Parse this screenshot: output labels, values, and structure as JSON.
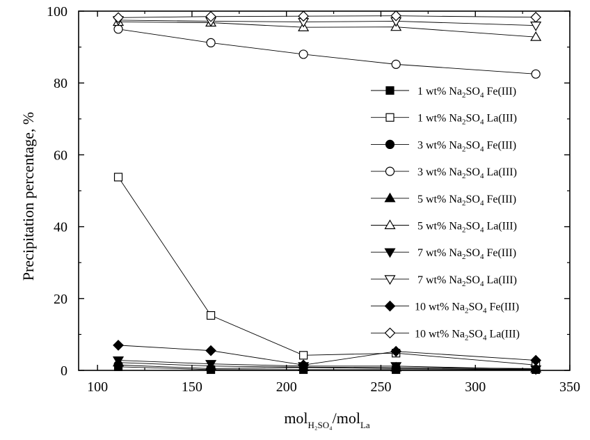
{
  "chart_data": {
    "type": "line",
    "title": "",
    "xlabel": {
      "main": "mol",
      "sub1": "H₂SO₄",
      "sep": "/mol",
      "sub2": "La"
    },
    "ylabel": "Precipitation percentage, %",
    "xlim": [
      90,
      350
    ],
    "ylim": [
      0,
      100
    ],
    "xticks": [
      "100",
      "150",
      "200",
      "250",
      "300",
      "350"
    ],
    "yticks": [
      "0",
      "20",
      "40",
      "60",
      "80",
      "100"
    ],
    "x": [
      111,
      160,
      209,
      258,
      332
    ],
    "series": [
      {
        "conc": "1 wt% Na",
        "metal": "Fe(III)",
        "marker": "square",
        "filled": true,
        "values": [
          1.0,
          0.2,
          0.2,
          0.2,
          0.2
        ]
      },
      {
        "conc": "1 wt% Na",
        "metal": "La(III)",
        "marker": "square",
        "filled": false,
        "values": [
          53.8,
          15.3,
          4.2,
          4.8,
          1.5
        ]
      },
      {
        "conc": "3 wt% Na",
        "metal": "Fe(III)",
        "marker": "circle",
        "filled": true,
        "values": [
          1.5,
          0.5,
          0.8,
          0.5,
          0.3
        ]
      },
      {
        "conc": "3 wt% Na",
        "metal": "La(III)",
        "marker": "circle",
        "filled": false,
        "values": [
          95.0,
          91.2,
          88.0,
          85.2,
          82.5
        ]
      },
      {
        "conc": "5 wt% Na",
        "metal": "Fe(III)",
        "marker": "triangle",
        "filled": true,
        "values": [
          2.2,
          1.2,
          0.9,
          0.8,
          0.5
        ]
      },
      {
        "conc": "5 wt% Na",
        "metal": "La(III)",
        "marker": "triangle",
        "filled": false,
        "values": [
          97.0,
          96.8,
          95.5,
          95.6,
          92.8
        ]
      },
      {
        "conc": "7 wt% Na",
        "metal": "Fe(III)",
        "marker": "triangle-down",
        "filled": true,
        "values": [
          2.8,
          1.8,
          1.2,
          1.2,
          0.3
        ]
      },
      {
        "conc": "7 wt% Na",
        "metal": "La(III)",
        "marker": "triangle-down",
        "filled": false,
        "values": [
          97.5,
          97.2,
          97.0,
          97.2,
          96.0
        ]
      },
      {
        "conc": "10 wt% Na",
        "metal": "Fe(III)",
        "marker": "diamond",
        "filled": true,
        "values": [
          7.0,
          5.5,
          1.5,
          5.3,
          2.8
        ]
      },
      {
        "conc": "10 wt% Na",
        "metal": "La(III)",
        "marker": "diamond",
        "filled": false,
        "values": [
          98.2,
          98.5,
          98.6,
          98.7,
          98.3
        ]
      }
    ],
    "legend_sub1": "2",
    "legend_mid": "SO",
    "legend_sub2": "4",
    "legend_position": "right"
  }
}
